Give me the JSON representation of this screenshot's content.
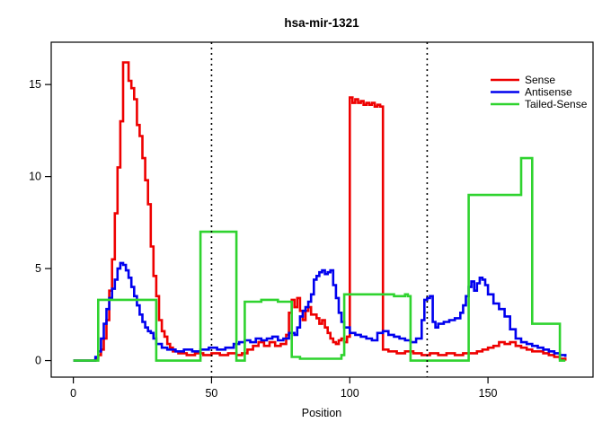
{
  "chart_data": {
    "type": "line",
    "style": "step",
    "title": "hsa-mir-1321",
    "xlabel": "Position",
    "ylabel": "",
    "xlim": [
      -8,
      188
    ],
    "ylim": [
      -0.9,
      17.3
    ],
    "xticks": [
      0,
      50,
      100,
      150
    ],
    "yticks": [
      0,
      5,
      10,
      15
    ],
    "grid": false,
    "legend_position": "top-right",
    "vlines": {
      "positions": [
        50,
        128
      ],
      "style": "dotted",
      "color": "#000000"
    },
    "series": [
      {
        "name": "Sense",
        "color": "#EE0000",
        "points": [
          [
            0,
            0
          ],
          [
            7,
            0
          ],
          [
            8,
            0.1
          ],
          [
            9,
            0.3
          ],
          [
            10,
            0.6
          ],
          [
            11,
            1.2
          ],
          [
            12,
            2.2
          ],
          [
            13,
            3.8
          ],
          [
            14,
            5.5
          ],
          [
            15,
            8
          ],
          [
            16,
            10.5
          ],
          [
            17,
            13
          ],
          [
            18,
            16.2
          ],
          [
            19,
            16.2
          ],
          [
            20,
            15.2
          ],
          [
            21,
            14.8
          ],
          [
            22,
            14.2
          ],
          [
            23,
            12.8
          ],
          [
            24,
            12.2
          ],
          [
            25,
            11
          ],
          [
            26,
            9.8
          ],
          [
            27,
            8.5
          ],
          [
            28,
            6.2
          ],
          [
            29,
            4.6
          ],
          [
            30,
            3.5
          ],
          [
            31,
            2.2
          ],
          [
            32,
            1.6
          ],
          [
            33,
            1.3
          ],
          [
            34,
            0.9
          ],
          [
            35,
            0.7
          ],
          [
            36,
            0.5
          ],
          [
            38,
            0.4
          ],
          [
            41,
            0.3
          ],
          [
            44,
            0.4
          ],
          [
            47,
            0.3
          ],
          [
            50,
            0.4
          ],
          [
            53,
            0.3
          ],
          [
            56,
            0.4
          ],
          [
            59,
            0.3
          ],
          [
            61,
            0.4
          ],
          [
            63,
            0.6
          ],
          [
            65,
            0.8
          ],
          [
            67,
            1.0
          ],
          [
            69,
            0.8
          ],
          [
            71,
            1.0
          ],
          [
            73,
            0.8
          ],
          [
            75,
            0.9
          ],
          [
            77,
            1.4
          ],
          [
            78,
            2.6
          ],
          [
            79,
            3.3
          ],
          [
            80,
            2.9
          ],
          [
            81,
            3.4
          ],
          [
            82,
            2.7
          ],
          [
            83,
            2.2
          ],
          [
            84,
            2.7
          ],
          [
            85,
            2.9
          ],
          [
            86,
            2.5
          ],
          [
            87,
            2.5
          ],
          [
            88,
            2.3
          ],
          [
            89,
            2.0
          ],
          [
            90,
            2.2
          ],
          [
            91,
            1.8
          ],
          [
            92,
            1.5
          ],
          [
            93,
            1.2
          ],
          [
            94,
            1.0
          ],
          [
            95,
            0.9
          ],
          [
            96,
            1.1
          ],
          [
            97,
            1.2
          ],
          [
            98,
            1.0
          ],
          [
            99,
            1.3
          ],
          [
            100,
            14.3
          ],
          [
            101,
            14.0
          ],
          [
            102,
            14.2
          ],
          [
            103,
            14.0
          ],
          [
            104,
            14.1
          ],
          [
            105,
            13.9
          ],
          [
            106,
            14.0
          ],
          [
            107,
            13.9
          ],
          [
            108,
            14.0
          ],
          [
            109,
            13.8
          ],
          [
            110,
            13.9
          ],
          [
            111,
            13.8
          ],
          [
            112,
            0.6
          ],
          [
            114,
            0.5
          ],
          [
            117,
            0.4
          ],
          [
            120,
            0.5
          ],
          [
            123,
            0.4
          ],
          [
            126,
            0.3
          ],
          [
            129,
            0.4
          ],
          [
            132,
            0.3
          ],
          [
            135,
            0.4
          ],
          [
            138,
            0.3
          ],
          [
            141,
            0.4
          ],
          [
            144,
            0.4
          ],
          [
            146,
            0.5
          ],
          [
            148,
            0.6
          ],
          [
            150,
            0.7
          ],
          [
            152,
            0.8
          ],
          [
            154,
            1.0
          ],
          [
            156,
            0.9
          ],
          [
            158,
            1.0
          ],
          [
            160,
            0.8
          ],
          [
            162,
            0.7
          ],
          [
            164,
            0.6
          ],
          [
            166,
            0.5
          ],
          [
            168,
            0.5
          ],
          [
            170,
            0.4
          ],
          [
            172,
            0.3
          ],
          [
            174,
            0.2
          ],
          [
            176,
            0.1
          ],
          [
            178,
            0
          ]
        ]
      },
      {
        "name": "Antisense",
        "color": "#0000EE",
        "points": [
          [
            0,
            0
          ],
          [
            7,
            0
          ],
          [
            8,
            0.2
          ],
          [
            9,
            0.5
          ],
          [
            10,
            1.2
          ],
          [
            11,
            2.0
          ],
          [
            12,
            2.8
          ],
          [
            13,
            3.4
          ],
          [
            14,
            3.9
          ],
          [
            15,
            4.4
          ],
          [
            16,
            5.0
          ],
          [
            17,
            5.3
          ],
          [
            18,
            5.2
          ],
          [
            19,
            4.9
          ],
          [
            20,
            4.5
          ],
          [
            21,
            4.0
          ],
          [
            22,
            3.5
          ],
          [
            23,
            3.0
          ],
          [
            24,
            2.5
          ],
          [
            25,
            2.1
          ],
          [
            26,
            1.8
          ],
          [
            27,
            1.6
          ],
          [
            28,
            1.5
          ],
          [
            29,
            1.2
          ],
          [
            30,
            0.9
          ],
          [
            32,
            0.7
          ],
          [
            34,
            0.6
          ],
          [
            37,
            0.5
          ],
          [
            40,
            0.6
          ],
          [
            43,
            0.5
          ],
          [
            46,
            0.6
          ],
          [
            49,
            0.7
          ],
          [
            52,
            0.6
          ],
          [
            55,
            0.7
          ],
          [
            58,
            0.9
          ],
          [
            60,
            1.0
          ],
          [
            62,
            1.1
          ],
          [
            64,
            1.0
          ],
          [
            66,
            1.2
          ],
          [
            68,
            1.1
          ],
          [
            70,
            1.2
          ],
          [
            72,
            1.3
          ],
          [
            74,
            1.1
          ],
          [
            76,
            1.2
          ],
          [
            78,
            1.5
          ],
          [
            80,
            1.4
          ],
          [
            81,
            1.8
          ],
          [
            82,
            2.4
          ],
          [
            83,
            2.7
          ],
          [
            84,
            2.9
          ],
          [
            85,
            3.2
          ],
          [
            86,
            3.6
          ],
          [
            87,
            4.4
          ],
          [
            88,
            4.6
          ],
          [
            89,
            4.8
          ],
          [
            90,
            4.9
          ],
          [
            91,
            4.7
          ],
          [
            92,
            4.8
          ],
          [
            93,
            4.9
          ],
          [
            94,
            4.1
          ],
          [
            95,
            3.4
          ],
          [
            96,
            2.6
          ],
          [
            97,
            2.1
          ],
          [
            98,
            1.8
          ],
          [
            100,
            1.5
          ],
          [
            102,
            1.4
          ],
          [
            104,
            1.3
          ],
          [
            106,
            1.2
          ],
          [
            108,
            1.1
          ],
          [
            110,
            1.5
          ],
          [
            112,
            1.6
          ],
          [
            114,
            1.4
          ],
          [
            116,
            1.3
          ],
          [
            118,
            1.2
          ],
          [
            120,
            1.1
          ],
          [
            122,
            1.0
          ],
          [
            124,
            1.2
          ],
          [
            126,
            2.2
          ],
          [
            127,
            3.3
          ],
          [
            128,
            3.4
          ],
          [
            129,
            3.5
          ],
          [
            130,
            2.1
          ],
          [
            131,
            1.8
          ],
          [
            132,
            2.0
          ],
          [
            134,
            2.1
          ],
          [
            136,
            2.2
          ],
          [
            138,
            2.3
          ],
          [
            140,
            2.6
          ],
          [
            141,
            3.0
          ],
          [
            142,
            3.5
          ],
          [
            143,
            4.0
          ],
          [
            144,
            4.3
          ],
          [
            145,
            3.8
          ],
          [
            146,
            4.2
          ],
          [
            147,
            4.5
          ],
          [
            148,
            4.4
          ],
          [
            149,
            4.1
          ],
          [
            150,
            3.6
          ],
          [
            152,
            3.1
          ],
          [
            154,
            2.8
          ],
          [
            156,
            2.4
          ],
          [
            158,
            1.7
          ],
          [
            160,
            1.2
          ],
          [
            162,
            1.0
          ],
          [
            164,
            0.9
          ],
          [
            166,
            0.8
          ],
          [
            168,
            0.7
          ],
          [
            170,
            0.6
          ],
          [
            172,
            0.5
          ],
          [
            174,
            0.4
          ],
          [
            176,
            0.3
          ],
          [
            178,
            0.2
          ]
        ]
      },
      {
        "name": "Tailed-Sense",
        "color": "#2FD32F",
        "points": [
          [
            0,
            0
          ],
          [
            8,
            0
          ],
          [
            9,
            3.3
          ],
          [
            29,
            3.3
          ],
          [
            30,
            0
          ],
          [
            45,
            0
          ],
          [
            46,
            7
          ],
          [
            58,
            7
          ],
          [
            59,
            0
          ],
          [
            61,
            0
          ],
          [
            62,
            3.2
          ],
          [
            68,
            3.3
          ],
          [
            74,
            3.2
          ],
          [
            78,
            3.2
          ],
          [
            79,
            0.2
          ],
          [
            82,
            0.1
          ],
          [
            96,
            0.1
          ],
          [
            97,
            0.3
          ],
          [
            98,
            3.6
          ],
          [
            110,
            3.6
          ],
          [
            116,
            3.5
          ],
          [
            120,
            3.6
          ],
          [
            121,
            3.5
          ],
          [
            122,
            0
          ],
          [
            142,
            0
          ],
          [
            143,
            9
          ],
          [
            161,
            9
          ],
          [
            162,
            11
          ],
          [
            165,
            11
          ],
          [
            166,
            2
          ],
          [
            175,
            2
          ],
          [
            176,
            0
          ],
          [
            178,
            0
          ]
        ]
      }
    ]
  }
}
